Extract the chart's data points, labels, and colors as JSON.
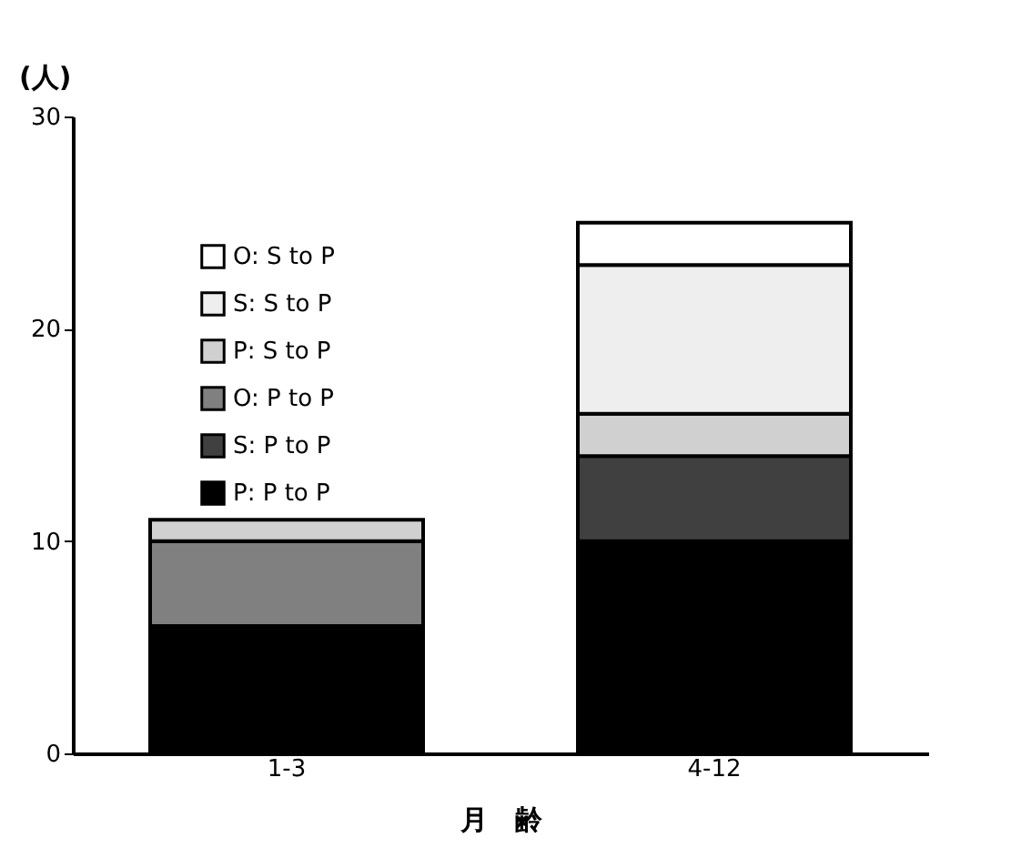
{
  "chart_data": {
    "type": "bar",
    "stacked": true,
    "categories": [
      "1-3",
      "4-12"
    ],
    "xlabel": "月　齢",
    "ylabel": "(人)",
    "ylim": [
      0,
      30
    ],
    "yticks": [
      0,
      10,
      20,
      30
    ],
    "grid": false,
    "legend": "top left",
    "series": [
      {
        "name": "P: P to P",
        "color": "#000000",
        "values": [
          6,
          10
        ]
      },
      {
        "name": "S: P to P",
        "color": "#404040",
        "values": [
          0,
          4
        ]
      },
      {
        "name": "O: P to P",
        "color": "#808080",
        "values": [
          4,
          0
        ]
      },
      {
        "name": "P: S to P",
        "color": "#d0d0d0",
        "values": [
          1,
          2
        ]
      },
      {
        "name": "S: S to P",
        "color": "#eeeeee",
        "values": [
          0,
          7
        ]
      },
      {
        "name": "O: S to P",
        "color": "#ffffff",
        "values": [
          0,
          2
        ]
      }
    ]
  }
}
